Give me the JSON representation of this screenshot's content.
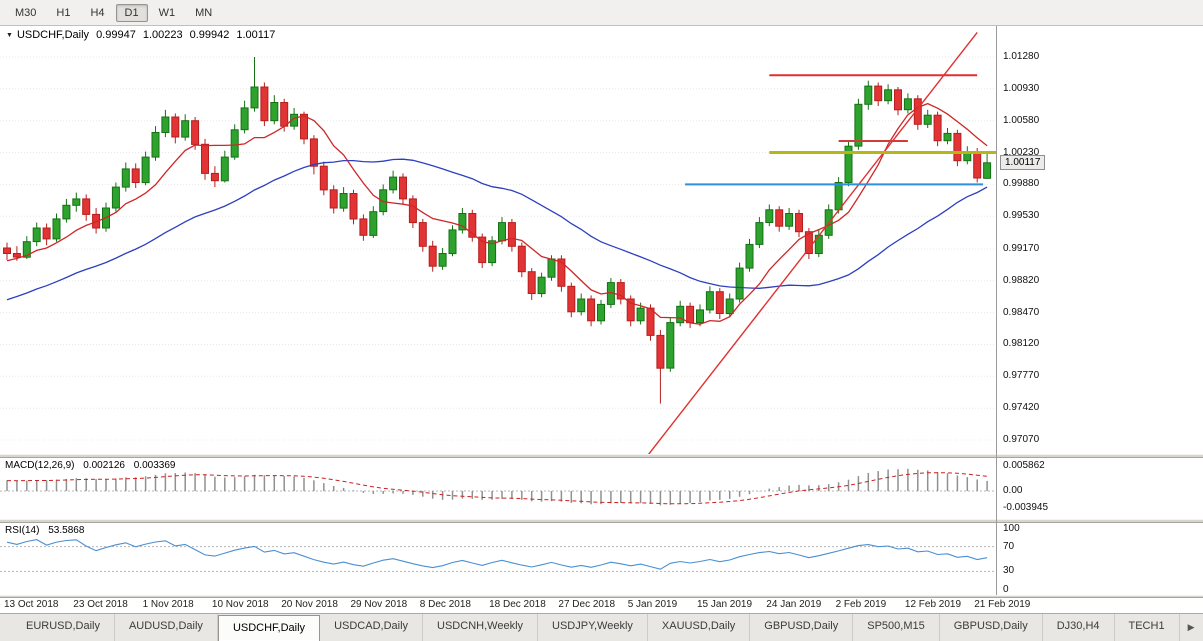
{
  "toolbar": {
    "timeframes": [
      {
        "label": "M30",
        "active": false
      },
      {
        "label": "H1",
        "active": false
      },
      {
        "label": "H4",
        "active": false
      },
      {
        "label": "D1",
        "active": true
      },
      {
        "label": "W1",
        "active": false
      },
      {
        "label": "MN",
        "active": false
      }
    ]
  },
  "tabs": [
    {
      "label": "EURUSD,Daily",
      "active": false
    },
    {
      "label": "AUDUSD,Daily",
      "active": false
    },
    {
      "label": "USDCHF,Daily",
      "active": true
    },
    {
      "label": "USDCAD,Daily",
      "active": false
    },
    {
      "label": "USDCNH,Weekly",
      "active": false
    },
    {
      "label": "USDJPY,Weekly",
      "active": false
    },
    {
      "label": "XAUUSD,Daily",
      "active": false
    },
    {
      "label": "GBPUSD,Daily",
      "active": false
    },
    {
      "label": "SP500,M15",
      "active": false
    },
    {
      "label": "GBPUSD,Daily",
      "active": false
    },
    {
      "label": "DJ30,H4",
      "active": false
    },
    {
      "label": "TECH1",
      "active": false
    }
  ],
  "colors": {
    "bull": "#2da32d",
    "bull_border": "#157015",
    "bear": "#e23434",
    "bear_border": "#b51f1f",
    "ma_fast": "#cf2626",
    "ma_slow": "#2d3fbf",
    "macd_hist": "#909090",
    "macd_signal": "#cc2020",
    "rsi_line": "#4a8fd3",
    "grid": "#e8e8e8",
    "level_dotted": "#b5b5b5"
  },
  "chart_data": {
    "type": "candlestick",
    "title": "USDCHF,Daily",
    "timeframe": "D1",
    "ohlc_current": {
      "open": "0.99947",
      "high": "1.00223",
      "low": "0.99942",
      "close": "1.00117"
    },
    "ylim": [
      0.9707,
      1.0128
    ],
    "y_axis_labels": [
      "1.01280",
      "1.00930",
      "1.00580",
      "1.00230",
      "0.99880",
      "0.99530",
      "0.99170",
      "0.98820",
      "0.98470",
      "0.98120",
      "0.97770",
      "0.97420",
      "0.97070"
    ],
    "x_axis_labels": [
      "13 Oct 2018",
      "23 Oct 2018",
      "1 Nov 2018",
      "10 Nov 2018",
      "20 Nov 2018",
      "29 Nov 2018",
      "8 Dec 2018",
      "18 Dec 2018",
      "27 Dec 2018",
      "5 Jan 2019",
      "15 Jan 2019",
      "24 Jan 2019",
      "2 Feb 2019",
      "12 Feb 2019",
      "21 Feb 2019"
    ],
    "candles": [
      [
        0.9918,
        0.9924,
        0.9905,
        0.9912
      ],
      [
        0.9912,
        0.992,
        0.9904,
        0.9908
      ],
      [
        0.9908,
        0.9931,
        0.9906,
        0.9925
      ],
      [
        0.9925,
        0.9946,
        0.992,
        0.994
      ],
      [
        0.994,
        0.9945,
        0.9921,
        0.9928
      ],
      [
        0.9928,
        0.9956,
        0.9925,
        0.995
      ],
      [
        0.995,
        0.9972,
        0.9946,
        0.9965
      ],
      [
        0.9965,
        0.9979,
        0.9958,
        0.9972
      ],
      [
        0.9972,
        0.9977,
        0.9948,
        0.9955
      ],
      [
        0.9955,
        0.9962,
        0.9934,
        0.994
      ],
      [
        0.994,
        0.9968,
        0.9936,
        0.9962
      ],
      [
        0.9962,
        0.999,
        0.9958,
        0.9985
      ],
      [
        0.9985,
        1.0012,
        0.998,
        1.0005
      ],
      [
        1.0005,
        1.0011,
        0.9984,
        0.999
      ],
      [
        0.999,
        1.0024,
        0.9987,
        1.0018
      ],
      [
        1.0018,
        1.0052,
        1.0014,
        1.0045
      ],
      [
        1.0045,
        1.007,
        1.004,
        1.0062
      ],
      [
        1.0062,
        1.0066,
        1.0033,
        1.004
      ],
      [
        1.004,
        1.0065,
        1.0036,
        1.0058
      ],
      [
        1.0058,
        1.0062,
        1.0026,
        1.0032
      ],
      [
        1.0032,
        1.0038,
        0.9993,
        1.0
      ],
      [
        1.0,
        1.0008,
        0.9985,
        0.9992
      ],
      [
        0.9992,
        1.0025,
        0.999,
        1.0018
      ],
      [
        1.0018,
        1.0054,
        1.0015,
        1.0048
      ],
      [
        1.0048,
        1.008,
        1.0044,
        1.0072
      ],
      [
        1.0072,
        1.0128,
        1.0068,
        1.0095
      ],
      [
        1.0095,
        1.01,
        1.0052,
        1.0058
      ],
      [
        1.0058,
        1.0086,
        1.0054,
        1.0078
      ],
      [
        1.0078,
        1.0082,
        1.0046,
        1.0052
      ],
      [
        1.0052,
        1.0072,
        1.0048,
        1.0065
      ],
      [
        1.0065,
        1.0068,
        1.0032,
        1.0038
      ],
      [
        1.0038,
        1.0042,
        0.9999,
        1.0008
      ],
      [
        1.0008,
        1.0013,
        0.9976,
        0.9982
      ],
      [
        0.9982,
        0.9987,
        0.9956,
        0.9962
      ],
      [
        0.9962,
        0.9985,
        0.9958,
        0.9978
      ],
      [
        0.9978,
        0.9982,
        0.9944,
        0.995
      ],
      [
        0.995,
        0.9955,
        0.9926,
        0.9932
      ],
      [
        0.9932,
        0.9964,
        0.9929,
        0.9958
      ],
      [
        0.9958,
        0.9988,
        0.9954,
        0.9982
      ],
      [
        0.9982,
        1.0003,
        0.9978,
        0.9996
      ],
      [
        0.9996,
        1.0,
        0.9966,
        0.9972
      ],
      [
        0.9972,
        0.9976,
        0.994,
        0.9946
      ],
      [
        0.9946,
        0.995,
        0.9914,
        0.992
      ],
      [
        0.992,
        0.9926,
        0.9892,
        0.9898
      ],
      [
        0.9898,
        0.9918,
        0.9894,
        0.9912
      ],
      [
        0.9912,
        0.9943,
        0.9909,
        0.9938
      ],
      [
        0.9938,
        0.9962,
        0.9934,
        0.9956
      ],
      [
        0.9956,
        0.996,
        0.9925,
        0.993
      ],
      [
        0.993,
        0.9934,
        0.9896,
        0.9902
      ],
      [
        0.9902,
        0.9931,
        0.9898,
        0.9926
      ],
      [
        0.9926,
        0.9952,
        0.9922,
        0.9946
      ],
      [
        0.9946,
        0.995,
        0.9914,
        0.992
      ],
      [
        0.992,
        0.9924,
        0.9886,
        0.9892
      ],
      [
        0.9892,
        0.9896,
        0.9861,
        0.9868
      ],
      [
        0.9868,
        0.9891,
        0.9864,
        0.9886
      ],
      [
        0.9886,
        0.991,
        0.9882,
        0.9906
      ],
      [
        0.9906,
        0.991,
        0.987,
        0.9876
      ],
      [
        0.9876,
        0.988,
        0.9842,
        0.9848
      ],
      [
        0.9848,
        0.9868,
        0.9844,
        0.9862
      ],
      [
        0.9862,
        0.9866,
        0.9832,
        0.9838
      ],
      [
        0.9838,
        0.9861,
        0.9834,
        0.9856
      ],
      [
        0.9856,
        0.9885,
        0.9852,
        0.988
      ],
      [
        0.988,
        0.9884,
        0.9856,
        0.9862
      ],
      [
        0.9862,
        0.9866,
        0.9832,
        0.9838
      ],
      [
        0.9838,
        0.9858,
        0.9834,
        0.9852
      ],
      [
        0.9852,
        0.9856,
        0.9816,
        0.9822
      ],
      [
        0.9822,
        0.9828,
        0.9747,
        0.9786
      ],
      [
        0.9786,
        0.9842,
        0.9782,
        0.9836
      ],
      [
        0.9836,
        0.986,
        0.9832,
        0.9854
      ],
      [
        0.9854,
        0.9858,
        0.983,
        0.9836
      ],
      [
        0.9836,
        0.9856,
        0.9832,
        0.985
      ],
      [
        0.985,
        0.9876,
        0.9846,
        0.987
      ],
      [
        0.987,
        0.9874,
        0.984,
        0.9846
      ],
      [
        0.9846,
        0.9868,
        0.9842,
        0.9862
      ],
      [
        0.9862,
        0.9902,
        0.9858,
        0.9896
      ],
      [
        0.9896,
        0.9928,
        0.9892,
        0.9922
      ],
      [
        0.9922,
        0.9952,
        0.9918,
        0.9946
      ],
      [
        0.9946,
        0.9966,
        0.9942,
        0.996
      ],
      [
        0.996,
        0.9964,
        0.9936,
        0.9942
      ],
      [
        0.9942,
        0.9962,
        0.9938,
        0.9956
      ],
      [
        0.9956,
        0.996,
        0.993,
        0.9936
      ],
      [
        0.9936,
        0.994,
        0.9906,
        0.9912
      ],
      [
        0.9912,
        0.9938,
        0.9908,
        0.9932
      ],
      [
        0.9932,
        0.9966,
        0.9928,
        0.996
      ],
      [
        0.996,
        0.9996,
        0.9956,
        0.999
      ],
      [
        0.999,
        1.0036,
        0.9986,
        1.003
      ],
      [
        1.003,
        1.0082,
        1.0026,
        1.0076
      ],
      [
        1.0076,
        1.0102,
        1.007,
        1.0096
      ],
      [
        1.0096,
        1.01,
        1.0074,
        1.008
      ],
      [
        1.008,
        1.0098,
        1.0076,
        1.0092
      ],
      [
        1.0092,
        1.0095,
        1.0064,
        1.007
      ],
      [
        1.007,
        1.0088,
        1.0066,
        1.0082
      ],
      [
        1.0082,
        1.0086,
        1.0048,
        1.0054
      ],
      [
        1.0054,
        1.007,
        1.005,
        1.0064
      ],
      [
        1.0064,
        1.0068,
        1.003,
        1.0036
      ],
      [
        1.0036,
        1.005,
        1.0032,
        1.0044
      ],
      [
        1.0044,
        1.0048,
        1.0008,
        1.0014
      ],
      [
        1.0014,
        1.003,
        1.001,
        1.0024
      ],
      [
        1.0024,
        1.0028,
        0.999,
        0.9995
      ],
      [
        0.99947,
        1.00223,
        0.99942,
        1.00117
      ]
    ],
    "overlays": {
      "ma_fast_period": 8,
      "ma_slow_period": 30,
      "trendline": {
        "i1": 64,
        "p1": 0.968,
        "i2": 98,
        "p2": 1.0155,
        "color": "#e03131",
        "width": 1.4
      },
      "hlines": [
        {
          "price": 1.0108,
          "i1": 77,
          "i2": 98,
          "color": "#e03131",
          "width": 2
        },
        {
          "price": 1.0023,
          "i1": 77,
          "i2": 101,
          "color": "#b6b616",
          "width": 3
        },
        {
          "price": 0.9988,
          "i1": 68.5,
          "i2": 98.6,
          "color": "#2e8fdf",
          "width": 2
        },
        {
          "price": 1.00357,
          "i1": 84,
          "i2": 91,
          "color": "#d43a3a",
          "width": 2
        }
      ]
    },
    "indicator_panels": [
      {
        "type": "macd",
        "label": "MACD(12,26,9)",
        "params": [
          12,
          26,
          9
        ],
        "value": "0.002126",
        "signal": "0.003369",
        "axis_labels": [
          "0.005862",
          "0.00",
          "-0.003945"
        ]
      },
      {
        "type": "rsi",
        "label": "RSI(14)",
        "period": 14,
        "value": "53.5868",
        "axis_labels": [
          "100",
          "70",
          "30",
          "0"
        ],
        "levels": [
          70,
          30
        ]
      }
    ]
  }
}
